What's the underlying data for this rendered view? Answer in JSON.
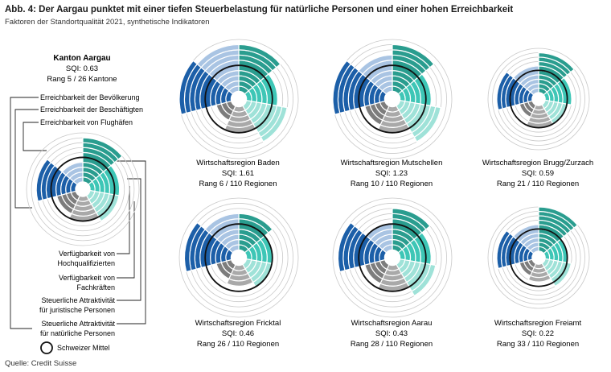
{
  "title": "Abb. 4: Der Aargau punktet mit einer tiefen Steuerbelastung für natürliche Personen und einer hohen Erreichbarkeit",
  "subtitle": "Faktoren der Standortqualität 2021, synthetische Indikatoren",
  "source": "Quelle: Credit Suisse",
  "legend_mean": "Schweizer Mittel",
  "colors": {
    "bevoelkerung": "#2a9d8f",
    "beschaeftigte": "#3ec6b6",
    "flughaefen": "#9fe2d8",
    "hochqualifiziert": "#a9a9a9",
    "fachkraefte": "#7d7d7d",
    "juristisch": "#1c5fa8",
    "natuerlich": "#a9c4e3",
    "grid": "#c9c9c9",
    "mean": "#111111"
  },
  "factor_labels": [
    "Erreichbarkeit der Bevölkerung",
    "Erreichbarkeit der Beschäftigten",
    "Erreichbarkeit von Flughäfen",
    "Verfügbarkeit von Hochqualifizierten",
    "Verfügbarkeit von Fachkräften",
    "Steuerliche Attraktivität für juristische Personen",
    "Steuerliche Attraktivität für natürliche Personen"
  ],
  "left_labels": {
    "bevoelkerung": "Erreichbarkeit der Bevölkerung",
    "beschaeftigte": "Erreichbarkeit der Beschäftigten",
    "flughaefen": "Erreichbarkeit von Flughäfen",
    "hochqualifiziert_1": "Verfügbarkeit von",
    "hochqualifiziert_2": "Hochqualifizierten",
    "fachkraefte_1": "Verfügbarkeit von",
    "fachkraefte_2": "Fachkräften",
    "juristisch_1": "Steuerliche Attraktivität",
    "juristisch_2": "für juristische Personen",
    "natuerlich_1": "Steuerliche Attraktivität",
    "natuerlich_2": "für natürliche Personen"
  },
  "chart_data": {
    "type": "polar-area",
    "scale_rings": 10,
    "mean_ring": 5,
    "charts": [
      {
        "name": "Kanton Aargau",
        "sqi": "SQI: 0.63",
        "rank": "Rang 5 / 26 Kantone",
        "values": [
          9,
          6,
          6,
          5,
          4,
          8,
          4
        ]
      },
      {
        "name": "Wirtschaftsregion Baden",
        "sqi": "SQI: 1.61",
        "rank": "Rang 6 / 110 Regionen",
        "values": [
          9,
          6,
          8,
          5,
          3,
          10,
          9
        ]
      },
      {
        "name": "Wirtschaftsregion Mutschellen",
        "sqi": "SQI: 1.23",
        "rank": "Rang 10 / 110 Regionen",
        "values": [
          9,
          6,
          8,
          5,
          4,
          10,
          7
        ]
      },
      {
        "name": "Wirtschaftsregion Brugg/Zurzach",
        "sqi": "SQI: 0.59",
        "rank": "Rang 21 / 110 Regionen",
        "values": [
          9,
          6,
          5,
          5,
          3,
          8,
          6
        ]
      },
      {
        "name": "Wirtschaftsregion Fricktal",
        "sqi": "SQI: 0.46",
        "rank": "Rang 26 / 110 Regionen",
        "values": [
          7,
          5,
          5,
          4,
          3,
          9,
          7
        ]
      },
      {
        "name": "Wirtschaftsregion Aarau",
        "sqi": "SQI: 0.43",
        "rank": "Rang 28 / 110 Regionen",
        "values": [
          8,
          6,
          7,
          5,
          4,
          9,
          5
        ]
      },
      {
        "name": "Wirtschaftsregion Freiamt",
        "sqi": "SQI: 0.22",
        "rank": "Rang 33 / 110 Regionen",
        "values": [
          10,
          5,
          6,
          4,
          3,
          8,
          6
        ]
      }
    ]
  }
}
